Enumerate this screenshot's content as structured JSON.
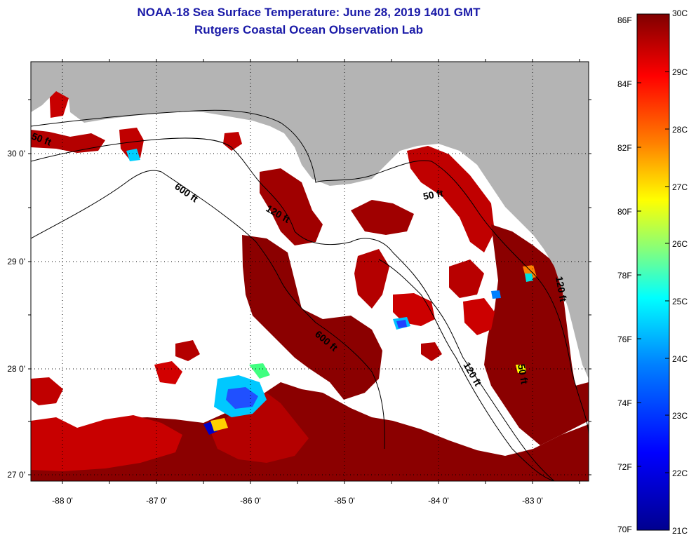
{
  "title": {
    "line1": "NOAA-18 Sea Surface Temperature:  June 28, 2019 1401 GMT",
    "line2": "Rutgers Coastal Ocean Observation Lab"
  },
  "map": {
    "lon_ticks": [
      "-88 0'",
      "-87 0'",
      "-86 0'",
      "-85 0'",
      "-84 0'",
      "-83 0'"
    ],
    "lat_ticks": [
      "30 0'",
      "29 0'",
      "28 0'",
      "27 0'"
    ],
    "contour_labels": [
      "600 ft",
      "120 ft",
      "50 ft",
      "600 ft",
      "120 ft",
      "50 ft",
      "50 ft",
      "120 ft"
    ],
    "colors": {
      "land": "#b4b4b4",
      "no_data": "#ffffff",
      "grid": "#000000"
    }
  },
  "colorbar": {
    "fahrenheit": [
      "86F",
      "84F",
      "82F",
      "80F",
      "78F",
      "76F",
      "74F",
      "72F",
      "70F"
    ],
    "celsius": [
      "30C",
      "29C",
      "28C",
      "27C",
      "26C",
      "25C",
      "24C",
      "23C",
      "22C",
      "21C"
    ],
    "gradient": [
      "#7f0000",
      "#ff0000",
      "#ff8000",
      "#ffff00",
      "#80ff80",
      "#00ffff",
      "#0080ff",
      "#0000ff",
      "#00008f"
    ]
  }
}
